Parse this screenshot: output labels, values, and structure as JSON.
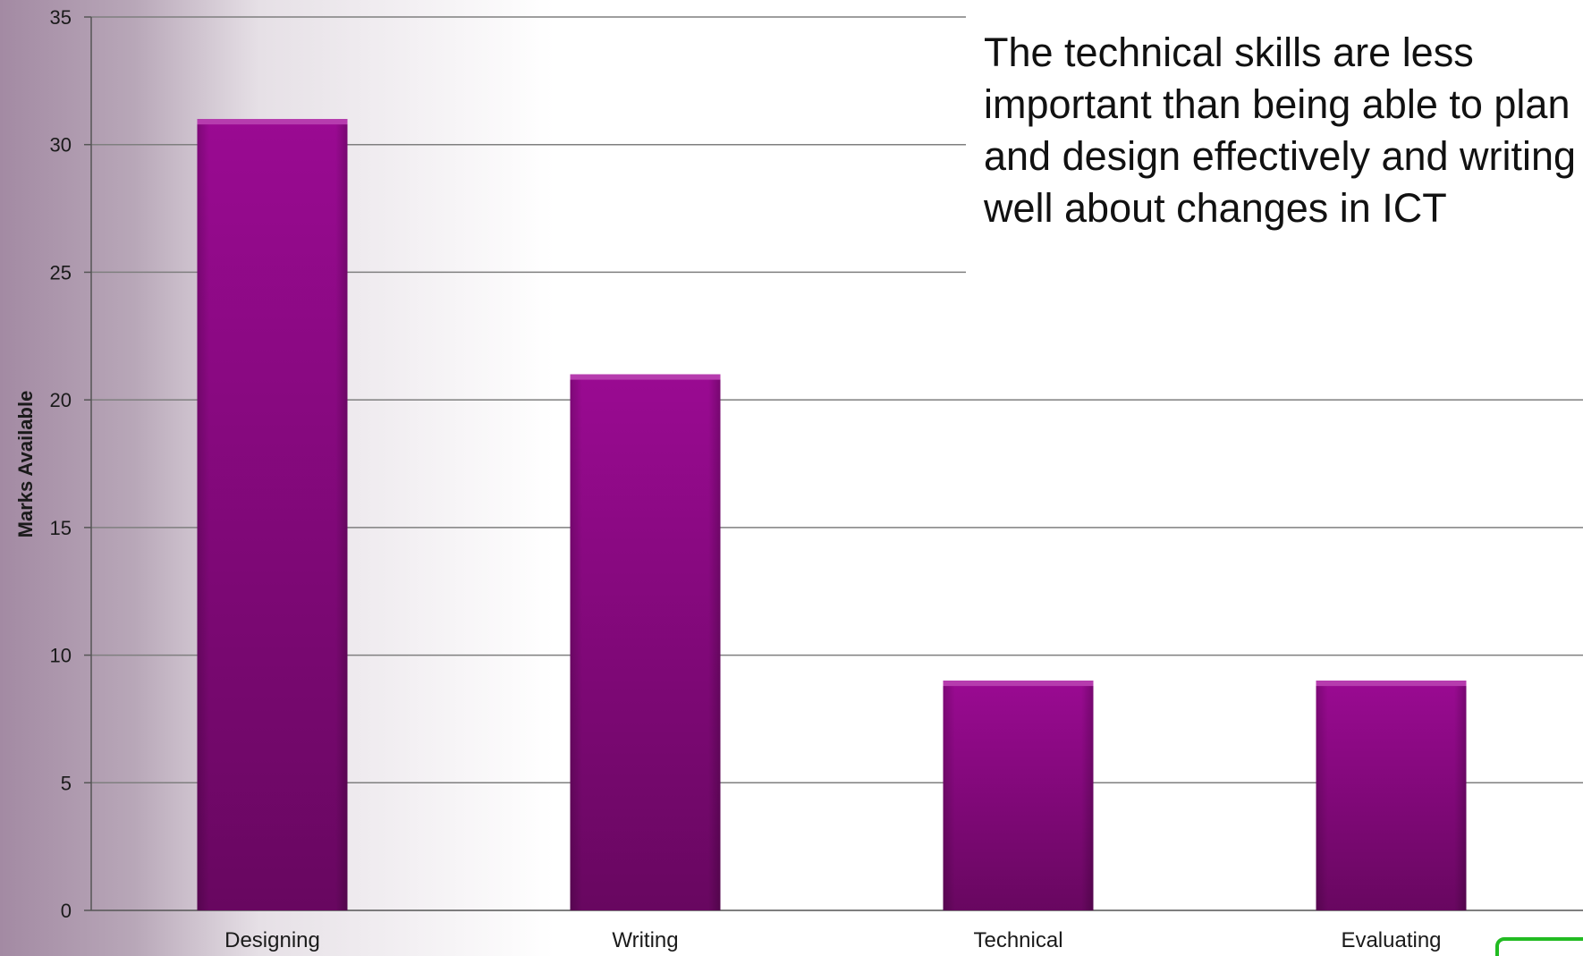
{
  "chart_data": {
    "type": "bar",
    "categories": [
      "Designing",
      "Writing",
      "Technical",
      "Evaluating"
    ],
    "values": [
      31,
      21,
      9,
      9
    ],
    "title": "",
    "xlabel": "",
    "ylabel": "Marks Available",
    "ylim": [
      0,
      35
    ],
    "yticks": [
      0,
      5,
      10,
      15,
      20,
      25,
      30,
      35
    ],
    "grid": true,
    "legend": "none",
    "bar_color": "#8a0a82"
  },
  "annotation": {
    "text": "The technical skills are less important than being able to plan and design effectively and writing well about changes in ICT"
  },
  "colors": {
    "bar_top": "#9a0a92",
    "bar_bottom": "#680760",
    "grid": "#7f7f7f",
    "button_border": "#22bb22"
  }
}
